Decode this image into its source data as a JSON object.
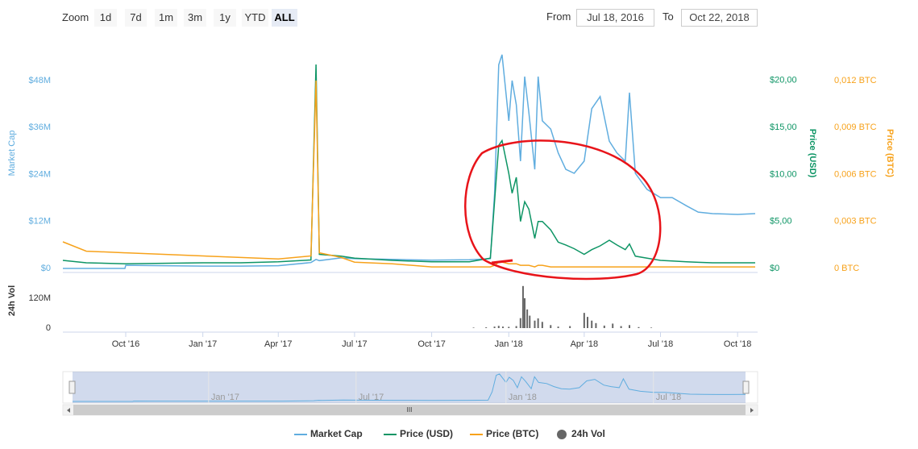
{
  "controls": {
    "zoom_label": "Zoom",
    "zoom_buttons": [
      "1d",
      "7d",
      "1m",
      "3m",
      "1y",
      "YTD",
      "ALL"
    ],
    "selected": "ALL",
    "from_label": "From",
    "from_date": "Jul 18, 2016",
    "to_label": "To",
    "to_date": "Oct 22, 2018"
  },
  "chart_data": {
    "type": "line",
    "x": [
      "2016-07-18",
      "2016-08-15",
      "2016-09-30",
      "2016-10-01",
      "2016-11-15",
      "2017-01-01",
      "2017-02-15",
      "2017-04-01",
      "2017-05-10",
      "2017-05-16",
      "2017-05-20",
      "2017-06-15",
      "2017-07-01",
      "2017-08-15",
      "2017-10-01",
      "2017-11-15",
      "2017-12-10",
      "2017-12-15",
      "2017-12-20",
      "2017-12-24",
      "2018-01-01",
      "2018-01-05",
      "2018-01-10",
      "2018-01-15",
      "2018-01-20",
      "2018-01-25",
      "2018-02-01",
      "2018-02-05",
      "2018-02-10",
      "2018-02-20",
      "2018-03-01",
      "2018-03-10",
      "2018-03-20",
      "2018-04-01",
      "2018-04-10",
      "2018-04-20",
      "2018-05-01",
      "2018-05-10",
      "2018-05-20",
      "2018-05-25",
      "2018-06-01",
      "2018-06-15",
      "2018-07-01",
      "2018-07-15",
      "2018-08-01",
      "2018-08-15",
      "2018-09-01",
      "2018-10-01",
      "2018-10-22"
    ],
    "series": [
      {
        "name": "Market Cap",
        "color": "#60addf",
        "axis": "y",
        "values": [
          0,
          0,
          0,
          800000,
          700000,
          600000,
          600000,
          700000,
          1500000,
          2300000,
          2000000,
          2700000,
          2500000,
          2300000,
          2100000,
          2200000,
          2500000,
          19000000,
          52000000,
          54600000,
          37700000,
          48000000,
          41800000,
          27400000,
          49000000,
          39800000,
          25300000,
          49000000,
          37700000,
          35600000,
          29500000,
          25300000,
          24300000,
          27400000,
          40800000,
          43900000,
          32500000,
          29500000,
          27400000,
          44900000,
          24300000,
          20200000,
          18100000,
          18100000,
          16000000,
          14400000,
          14000000,
          13800000,
          14000000
        ]
      },
      {
        "name": "Price (USD)",
        "color": "#0e9565",
        "axis": "y2",
        "values": [
          0.86,
          0.6,
          0.5,
          0.5,
          0.55,
          0.6,
          0.6,
          0.7,
          0.9,
          21.7,
          1.5,
          1.3,
          1.1,
          0.86,
          0.7,
          0.7,
          1.1,
          7.1,
          13.1,
          13.6,
          10.1,
          8,
          9.7,
          5,
          7.1,
          6.3,
          3.2,
          5,
          5,
          4.1,
          2.8,
          2.5,
          2.1,
          1.5,
          2,
          2.4,
          3,
          2.5,
          2,
          2.6,
          1.3,
          1.1,
          0.86,
          0.8,
          0.7,
          0.65,
          0.6,
          0.6,
          0.6
        ]
      },
      {
        "name": "Price (BTC)",
        "color": "#f7a21b",
        "axis": "y3",
        "values": [
          0.0017,
          0.0011,
          0.001,
          0.001,
          0.0009,
          0.0008,
          0.0007,
          0.0006,
          0.0008,
          0.012,
          0.001,
          0.0007,
          0.0004,
          0.0003,
          0.0001,
          0.0001,
          0.0001,
          0.0002,
          0.0004,
          0.0004,
          0.0003,
          0.0003,
          0.0003,
          0.0002,
          0.0002,
          0.0002,
          0.0001,
          0.0002,
          0.0002,
          0.0001,
          0.0001,
          0.0001,
          0.0001,
          0.0001,
          0.0001,
          0.0001,
          0.0001,
          0.0001,
          0.0001,
          0.0001,
          0.0001,
          0.0001,
          0.0001,
          0.0001,
          0.0001,
          0.0001,
          0.0001,
          0.0001,
          0.0001
        ]
      }
    ],
    "xlim": [
      "2016-07-18",
      "2018-10-22"
    ],
    "xticks": [
      {
        "value": "2016-10-01",
        "label": "Oct '16"
      },
      {
        "value": "2017-01-01",
        "label": "Jan '17"
      },
      {
        "value": "2017-04-01",
        "label": "Apr '17"
      },
      {
        "value": "2017-07-01",
        "label": "Jul '17"
      },
      {
        "value": "2017-10-01",
        "label": "Oct '17"
      },
      {
        "value": "2018-01-01",
        "label": "Jan '18"
      },
      {
        "value": "2018-04-01",
        "label": "Apr '18"
      },
      {
        "value": "2018-07-01",
        "label": "Jul '18"
      },
      {
        "value": "2018-10-01",
        "label": "Oct '18"
      }
    ],
    "ylabel": "Market Cap",
    "ylim": [
      0,
      56000000
    ],
    "yticks": [
      {
        "value": 0,
        "label": "$0"
      },
      {
        "value": 12000000,
        "label": "$12M"
      },
      {
        "value": 24000000,
        "label": "$24M"
      },
      {
        "value": 36000000,
        "label": "$36M"
      },
      {
        "value": 48000000,
        "label": "$48M"
      }
    ],
    "y2label": "Price (USD)",
    "y2lim": [
      0,
      23.33
    ],
    "y2ticks": [
      {
        "value": 0,
        "label": "$0"
      },
      {
        "value": 5,
        "label": "$5,00"
      },
      {
        "value": 10,
        "label": "$10,00"
      },
      {
        "value": 15,
        "label": "$15,00"
      },
      {
        "value": 20,
        "label": "$20,00"
      }
    ],
    "y3label": "Price (BTC)",
    "y3lim": [
      0,
      0.014
    ],
    "y3ticks": [
      {
        "value": 0,
        "label": "0 BTC"
      },
      {
        "value": 0.003,
        "label": "0,003 BTC"
      },
      {
        "value": 0.006,
        "label": "0,006 BTC"
      },
      {
        "value": 0.009,
        "label": "0,009 BTC"
      },
      {
        "value": 0.012,
        "label": "0,012 BTC"
      }
    ],
    "volume": {
      "name": "24h Vol",
      "color": "#666666",
      "ylabel": "24h Vol",
      "ylim": [
        0,
        217000000
      ],
      "yticks": [
        0,
        {
          "value": 120000000,
          "label": "120M"
        }
      ],
      "x": [
        "2017-11-20",
        "2017-12-05",
        "2017-12-15",
        "2017-12-20",
        "2017-12-25",
        "2018-01-01",
        "2018-01-10",
        "2018-01-15",
        "2018-01-18",
        "2018-01-20",
        "2018-01-23",
        "2018-01-26",
        "2018-02-01",
        "2018-02-05",
        "2018-02-10",
        "2018-02-20",
        "2018-03-01",
        "2018-03-15",
        "2018-04-01",
        "2018-04-05",
        "2018-04-10",
        "2018-04-15",
        "2018-04-25",
        "2018-05-05",
        "2018-05-15",
        "2018-05-25",
        "2018-06-05",
        "2018-06-20"
      ],
      "values": [
        2000000,
        3000000,
        6000000,
        9000000,
        6000000,
        5000000,
        8000000,
        40000000,
        169000000,
        120000000,
        75000000,
        50000000,
        30000000,
        39000000,
        25000000,
        12000000,
        6000000,
        8000000,
        61000000,
        45000000,
        30000000,
        20000000,
        10000000,
        18000000,
        8000000,
        12000000,
        4000000,
        2000000
      ]
    },
    "navigator": {
      "xticks": [
        {
          "value": "2017-01-01",
          "label": "Jan '17"
        },
        {
          "value": "2017-07-01",
          "label": "Jul '17"
        },
        {
          "value": "2018-01-01",
          "label": "Jan '18"
        },
        {
          "value": "2018-07-01",
          "label": "Jul '18"
        }
      ]
    }
  }
}
